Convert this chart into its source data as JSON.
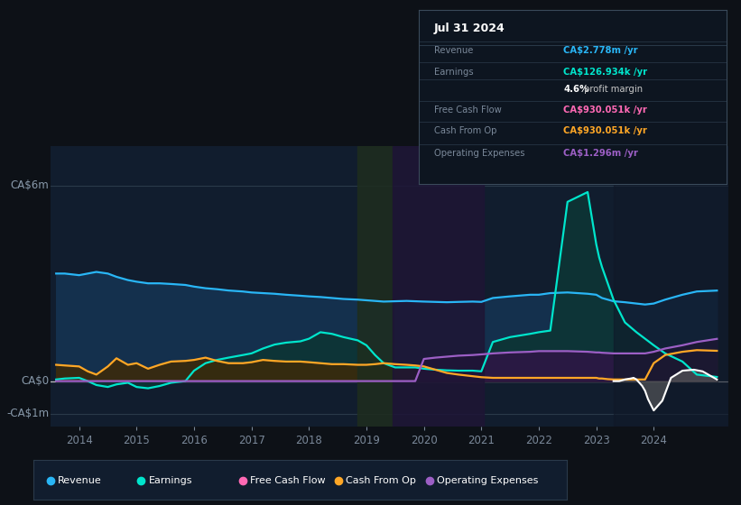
{
  "bg_color": "#0d1117",
  "plot_bg_color": "#111d2e",
  "ylim": [
    -1.4,
    7.2
  ],
  "xlim": [
    2013.5,
    2025.3
  ],
  "xticks": [
    2014,
    2015,
    2016,
    2017,
    2018,
    2019,
    2020,
    2021,
    2022,
    2023,
    2024
  ],
  "colors": {
    "revenue": "#29b6f6",
    "earnings": "#00e5cc",
    "free_cash_flow": "#ff69b4",
    "cash_from_op": "#ffa726",
    "operating_expenses": "#9c5fc5"
  },
  "series_x": [
    2013.6,
    2013.75,
    2014.0,
    2014.15,
    2014.3,
    2014.5,
    2014.65,
    2014.85,
    2015.0,
    2015.2,
    2015.4,
    2015.6,
    2015.85,
    2016.0,
    2016.2,
    2016.4,
    2016.6,
    2016.85,
    2017.0,
    2017.2,
    2017.4,
    2017.6,
    2017.85,
    2018.0,
    2018.2,
    2018.4,
    2018.6,
    2018.85,
    2019.0,
    2019.15,
    2019.3,
    2019.5,
    2019.7,
    2019.85,
    2020.0,
    2020.2,
    2020.4,
    2020.6,
    2020.85,
    2021.0,
    2021.2,
    2021.5,
    2021.85,
    2022.0,
    2022.2,
    2022.5,
    2022.85,
    2023.0,
    2023.05,
    2023.1,
    2023.2,
    2023.3,
    2023.5,
    2023.7,
    2023.85,
    2024.0,
    2024.2,
    2024.5,
    2024.75,
    2025.1
  ],
  "revenue": [
    3.3,
    3.3,
    3.25,
    3.3,
    3.35,
    3.3,
    3.2,
    3.1,
    3.05,
    3.0,
    3.0,
    2.98,
    2.95,
    2.9,
    2.85,
    2.82,
    2.78,
    2.75,
    2.72,
    2.7,
    2.68,
    2.65,
    2.62,
    2.6,
    2.58,
    2.55,
    2.52,
    2.5,
    2.48,
    2.46,
    2.44,
    2.45,
    2.46,
    2.45,
    2.44,
    2.43,
    2.42,
    2.43,
    2.44,
    2.43,
    2.55,
    2.6,
    2.65,
    2.65,
    2.7,
    2.72,
    2.68,
    2.65,
    2.6,
    2.55,
    2.5,
    2.45,
    2.42,
    2.38,
    2.35,
    2.38,
    2.5,
    2.65,
    2.75,
    2.778
  ],
  "earnings": [
    0.05,
    0.08,
    0.1,
    0.0,
    -0.12,
    -0.18,
    -0.1,
    -0.05,
    -0.18,
    -0.22,
    -0.15,
    -0.05,
    0.0,
    0.32,
    0.55,
    0.65,
    0.72,
    0.8,
    0.85,
    1.0,
    1.12,
    1.18,
    1.22,
    1.3,
    1.5,
    1.45,
    1.35,
    1.25,
    1.1,
    0.8,
    0.55,
    0.42,
    0.42,
    0.42,
    0.38,
    0.35,
    0.33,
    0.32,
    0.32,
    0.3,
    1.2,
    1.35,
    1.45,
    1.5,
    1.55,
    5.5,
    5.8,
    4.2,
    3.8,
    3.5,
    3.0,
    2.5,
    1.8,
    1.5,
    1.3,
    1.1,
    0.85,
    0.6,
    0.2,
    0.127
  ],
  "cash_from_op": [
    0.5,
    0.48,
    0.45,
    0.3,
    0.2,
    0.45,
    0.7,
    0.5,
    0.55,
    0.38,
    0.5,
    0.6,
    0.62,
    0.65,
    0.72,
    0.62,
    0.55,
    0.55,
    0.58,
    0.65,
    0.62,
    0.6,
    0.6,
    0.58,
    0.55,
    0.52,
    0.52,
    0.5,
    0.5,
    0.52,
    0.55,
    0.52,
    0.5,
    0.48,
    0.45,
    0.35,
    0.25,
    0.2,
    0.15,
    0.12,
    0.1,
    0.1,
    0.1,
    0.1,
    0.1,
    0.1,
    0.1,
    0.1,
    0.08,
    0.08,
    0.06,
    0.05,
    0.05,
    0.05,
    0.05,
    0.55,
    0.8,
    0.9,
    0.95,
    0.93
  ],
  "operating_expenses": [
    0.0,
    0.0,
    0.0,
    0.0,
    0.0,
    0.0,
    0.0,
    0.0,
    0.0,
    0.0,
    0.0,
    0.0,
    0.0,
    0.0,
    0.0,
    0.0,
    0.0,
    0.0,
    0.0,
    0.0,
    0.0,
    0.0,
    0.0,
    0.0,
    0.0,
    0.0,
    0.0,
    0.0,
    0.0,
    0.0,
    0.0,
    0.0,
    0.0,
    0.0,
    0.68,
    0.72,
    0.75,
    0.78,
    0.8,
    0.82,
    0.85,
    0.88,
    0.9,
    0.92,
    0.92,
    0.92,
    0.9,
    0.88,
    0.88,
    0.87,
    0.86,
    0.85,
    0.85,
    0.85,
    0.85,
    0.9,
    1.0,
    1.1,
    1.2,
    1.296
  ],
  "fcf_x": [
    2023.3,
    2023.4,
    2023.5,
    2023.6,
    2023.65,
    2023.7,
    2023.8,
    2023.85,
    2023.9,
    2024.0,
    2024.15,
    2024.3,
    2024.5,
    2024.7,
    2024.85,
    2025.1
  ],
  "fcf_y": [
    0.0,
    0.0,
    0.05,
    0.08,
    0.1,
    0.05,
    -0.15,
    -0.3,
    -0.55,
    -0.9,
    -0.6,
    0.1,
    0.32,
    0.35,
    0.3,
    0.05
  ],
  "legend": [
    {
      "label": "Revenue",
      "color": "#29b6f6"
    },
    {
      "label": "Earnings",
      "color": "#00e5cc"
    },
    {
      "label": "Free Cash Flow",
      "color": "#ff69b4"
    },
    {
      "label": "Cash From Op",
      "color": "#ffa726"
    },
    {
      "label": "Operating Expenses",
      "color": "#9c5fc5"
    }
  ]
}
